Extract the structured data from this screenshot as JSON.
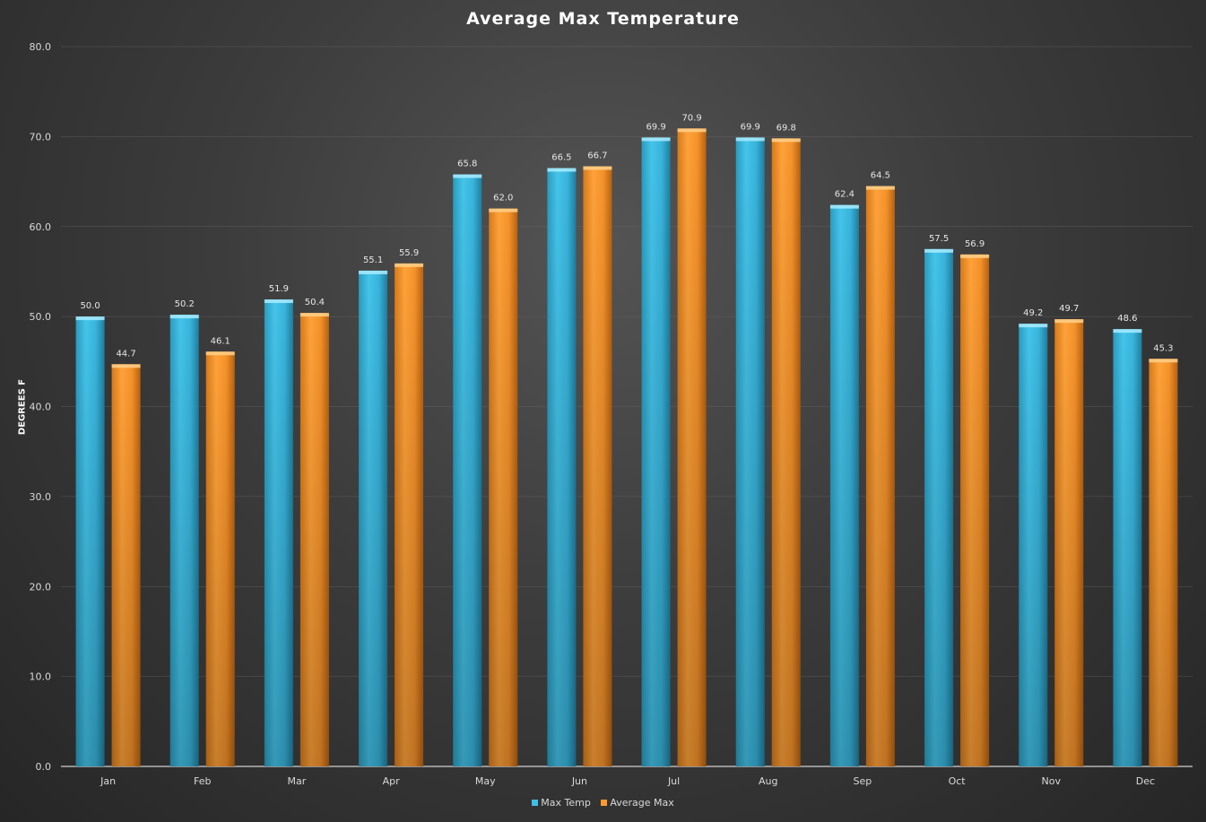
{
  "chart_data": {
    "type": "bar",
    "title": "Average Max Temperature",
    "xlabel": "",
    "ylabel": "DEGREES F",
    "ylim": [
      0,
      80
    ],
    "yticks": [
      "0.0",
      "10.0",
      "20.0",
      "30.0",
      "40.0",
      "50.0",
      "60.0",
      "70.0",
      "80.0"
    ],
    "categories": [
      "Jan",
      "Feb",
      "Mar",
      "Apr",
      "May",
      "Jun",
      "Jul",
      "Aug",
      "Sep",
      "Oct",
      "Nov",
      "Dec"
    ],
    "series": [
      {
        "name": "Max Temp",
        "color": "#3fbfe6",
        "values": [
          50.0,
          50.2,
          51.9,
          55.1,
          65.8,
          66.5,
          69.9,
          69.9,
          62.4,
          57.5,
          49.2,
          48.6
        ]
      },
      {
        "name": "Average Max",
        "color": "#ff9a2e",
        "values": [
          44.7,
          46.1,
          50.4,
          55.9,
          62.0,
          66.7,
          70.9,
          69.8,
          64.5,
          56.9,
          49.7,
          45.3
        ]
      }
    ],
    "grid": true,
    "legend": "bottom-center",
    "data_labels": true
  }
}
